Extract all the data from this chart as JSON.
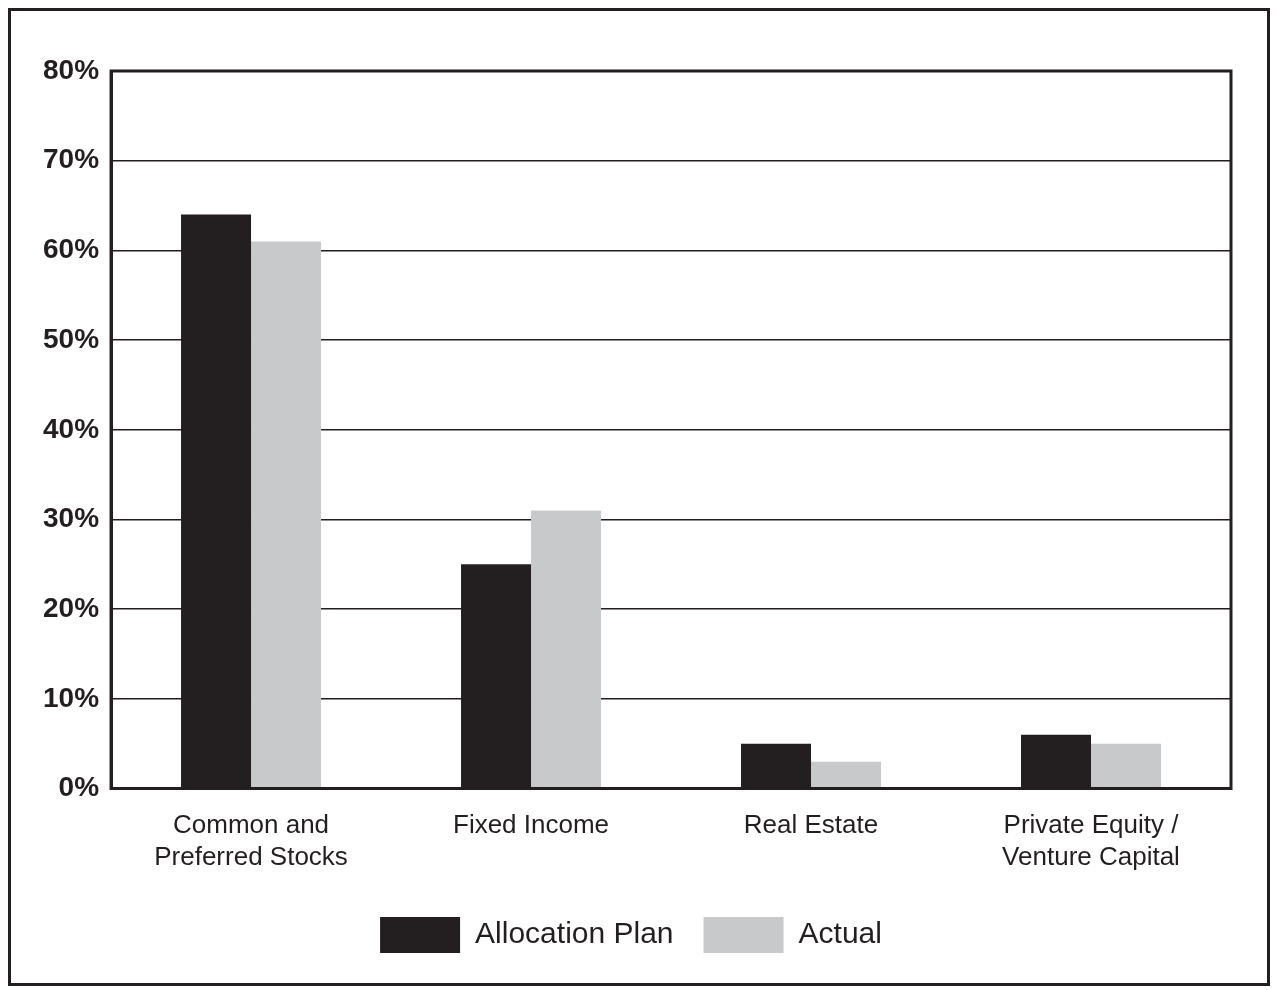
{
  "chart_data": {
    "type": "bar",
    "categories": [
      "Common and Preferred Stocks",
      "Fixed Income",
      "Real Estate",
      "Private Equity / Venture Capital"
    ],
    "series": [
      {
        "name": "Allocation Plan",
        "color": "#231f20",
        "values": [
          64,
          25,
          5,
          6
        ]
      },
      {
        "name": "Actual",
        "color": "#c8c9ca",
        "values": [
          61,
          31,
          3,
          5
        ]
      }
    ],
    "ylim": [
      0,
      80
    ],
    "yticks": [
      {
        "value": 0,
        "label": "0%"
      },
      {
        "value": 10,
        "label": "10%"
      },
      {
        "value": 20,
        "label": "20%"
      },
      {
        "value": 30,
        "label": "30%"
      },
      {
        "value": 40,
        "label": "40%"
      },
      {
        "value": 50,
        "label": "50%"
      },
      {
        "value": 60,
        "label": "60%"
      },
      {
        "value": 70,
        "label": "70%"
      },
      {
        "value": 80,
        "label": "80%"
      }
    ],
    "grid": "y",
    "legend": "bottom"
  }
}
